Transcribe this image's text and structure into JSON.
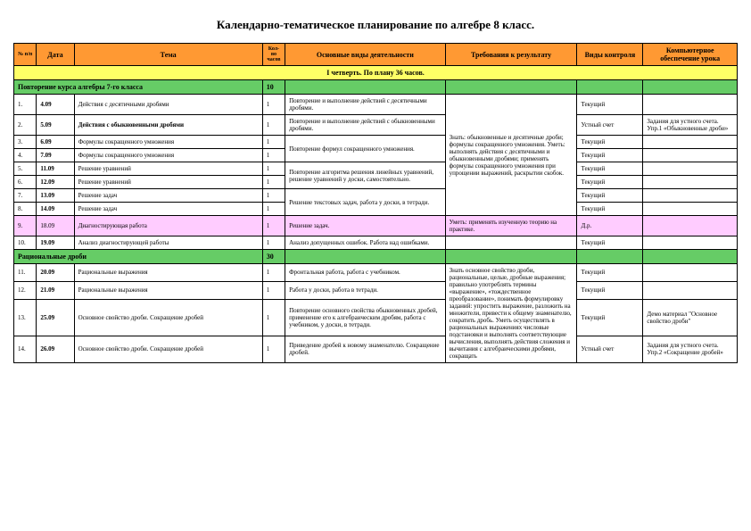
{
  "title": "Календарно-тематическое планирование по алгебре 8 класс.",
  "headers": {
    "num": "№ п/п",
    "date": "Дата",
    "topic": "Тема",
    "hours": "Кол-во часов",
    "activities": "Основные виды деятельности",
    "requirements": "Требования к результату",
    "control": "Виды контроля",
    "computer": "Компьютерное обеспечение урока"
  },
  "quarter": "I четверть. По плану 36 часов.",
  "section1": {
    "title": "Повторение курса алгебры 7-го класса",
    "hours": "10"
  },
  "rows1": [
    {
      "n": "1.",
      "d": "4.09",
      "t": "Действия с десятичными дробями",
      "h": "1",
      "act": "Повторение и выполнение действий с десятичными дробями.",
      "ctrl": "Текущий",
      "comp": ""
    },
    {
      "n": "2.",
      "d": "5.09",
      "t": "Действия с обыкновенными дробями",
      "h": "1",
      "act": "Повторение и выполнение действий с обыкновенными дробями.",
      "ctrl": "Устный счет",
      "comp": "Задания для устного счета. Упр.1 «Обыкновенные дроби»"
    },
    {
      "n": "3.",
      "d": "6.09",
      "t": "Формулы сокращенного умножения",
      "h": "1",
      "ctrl": "Текущий",
      "comp": ""
    },
    {
      "n": "4.",
      "d": "7.09",
      "t": "Формулы сокращенного умножения",
      "h": "1",
      "ctrl": "Текущий",
      "comp": ""
    },
    {
      "n": "5.",
      "d": "11.09",
      "t": "Решение уравнений",
      "h": "1",
      "ctrl": "Текущий",
      "comp": ""
    },
    {
      "n": "6.",
      "d": "12.09",
      "t": "Решение уравнений",
      "h": "1",
      "ctrl": "Текущий",
      "comp": ""
    },
    {
      "n": "7.",
      "d": "13.09",
      "t": "Решение задач",
      "h": "1",
      "ctrl": "Текущий",
      "comp": ""
    },
    {
      "n": "8.",
      "d": "14.09",
      "t": "Решение задач",
      "h": "1",
      "ctrl": "Текущий",
      "comp": ""
    }
  ],
  "act34": "Повторение формул сокращенного умножения.",
  "act56": "Повторение алгоритма решения линейных уравнений, решение уравнений у доски, самостоятельно.",
  "act78": "Решение текстовых задач, работа у доски, в тетради.",
  "req1": "Знать: обыкновенные и десятичные дроби; формулы сокращенного умножения. Уметь: выполнять действия с десятичными и обыкновенными дробями; применять формулы сокращенного умножения при упрощении выражений, раскрытии скобок.",
  "diag": {
    "n": "9.",
    "d": "18.09",
    "t": "Диагностирующая работа",
    "h": "1",
    "act": "Решение задач.",
    "req": "Уметь: применять изученную теорию на практике.",
    "ctrl": "Д.р.",
    "comp": ""
  },
  "row10": {
    "n": "10.",
    "d": "19.09",
    "t": "Анализ диагностирующей работы",
    "h": "1",
    "act": "Анализ допущенных ошибок. Работа над ошибками.",
    "req": "",
    "ctrl": "Текущий",
    "comp": ""
  },
  "section2": {
    "title": "Рациональные дроби",
    "hours": "30"
  },
  "rows2": [
    {
      "n": "11.",
      "d": "20.09",
      "t": "Рациональные выражения",
      "h": "1",
      "act": "Фронтальная работа, работа с учебником.",
      "ctrl": "Текущий",
      "comp": ""
    },
    {
      "n": "12.",
      "d": "21.09",
      "t": "Рациональные выражения",
      "h": "1",
      "act": "Работа у доски, работа в тетради.",
      "ctrl": "Текущий",
      "comp": ""
    },
    {
      "n": "13.",
      "d": "25.09",
      "t": "Основное свойство дроби. Сокращение дробей",
      "h": "1",
      "act": "Повторение основного свойства обыкновенных дробей, применение его к алгебраическим дробям, работа с учебником, у доски, в тетради.",
      "ctrl": "Текущий",
      "comp": "Демо материал \"Основное свойство дроби\""
    },
    {
      "n": "14.",
      "d": "26.09",
      "t": "Основное свойство дроби. Сокращение дробей",
      "h": "1",
      "act": "Приведение дробей к новому знаменателю. Сокращение дробей.",
      "ctrl": "Устный счет",
      "comp": "Задания для устного счета. Упр.2 «Сокращение дробей»"
    }
  ],
  "req2": "Знать основное свойство дроби, рациональные, целые, дробные выражения; правильно употреблять термины «выражение», «тождественное преобразование», понимать формулировку заданий: упростить выражение, разложить на множители, привести к общему знаменателю, сократить дробь. Уметь осуществлять в рациональных выражениях числовые подстановки и выполнять соответствующие вычисления, выполнять действия сложения и вычитания с алгебраическими дробями, сокращать"
}
